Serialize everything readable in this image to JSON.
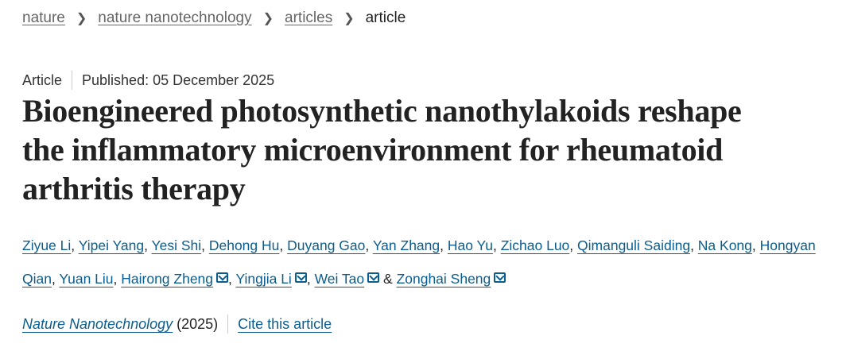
{
  "breadcrumb": {
    "items": [
      "nature",
      "nature nanotechnology",
      "articles"
    ],
    "current": "article"
  },
  "meta": {
    "type": "Article",
    "published": "Published: 05 December 2025"
  },
  "title": "Bioengineered photosynthetic nanothylakoids reshape the inflammatory microenvironment for rheumatoid arthritis therapy",
  "authors": [
    {
      "name": "Ziyue Li",
      "sep": ", "
    },
    {
      "name": "Yipei Yang",
      "sep": ", "
    },
    {
      "name": "Yesi Shi",
      "sep": ", "
    },
    {
      "name": "Dehong Hu",
      "sep": ", "
    },
    {
      "name": "Duyang Gao",
      "sep": ", "
    },
    {
      "name": "Yan Zhang",
      "sep": ", "
    },
    {
      "name": "Hao Yu",
      "sep": ", "
    },
    {
      "name": "Zichao Luo",
      "sep": ", "
    },
    {
      "name": "Qimanguli Saiding",
      "sep": ", "
    },
    {
      "name": "Na Kong",
      "sep": ", "
    },
    {
      "name": "Hongyan Qian",
      "sep": ", "
    },
    {
      "name": "Yuan Liu",
      "sep": ", "
    },
    {
      "name": "Hairong Zheng",
      "mail": true,
      "sep": ", "
    },
    {
      "name": "Yingjia Li",
      "mail": true,
      "sep": ", "
    },
    {
      "name": "Wei Tao",
      "mail": true,
      "sep": " & "
    },
    {
      "name": "Zonghai Sheng",
      "mail": true,
      "sep": ""
    }
  ],
  "citation": {
    "journal": "Nature Nanotechnology",
    "year": "(2025)",
    "cite_label": "Cite this article"
  },
  "colors": {
    "link": "#0b5d8e",
    "breadcrumb": "#666666"
  }
}
